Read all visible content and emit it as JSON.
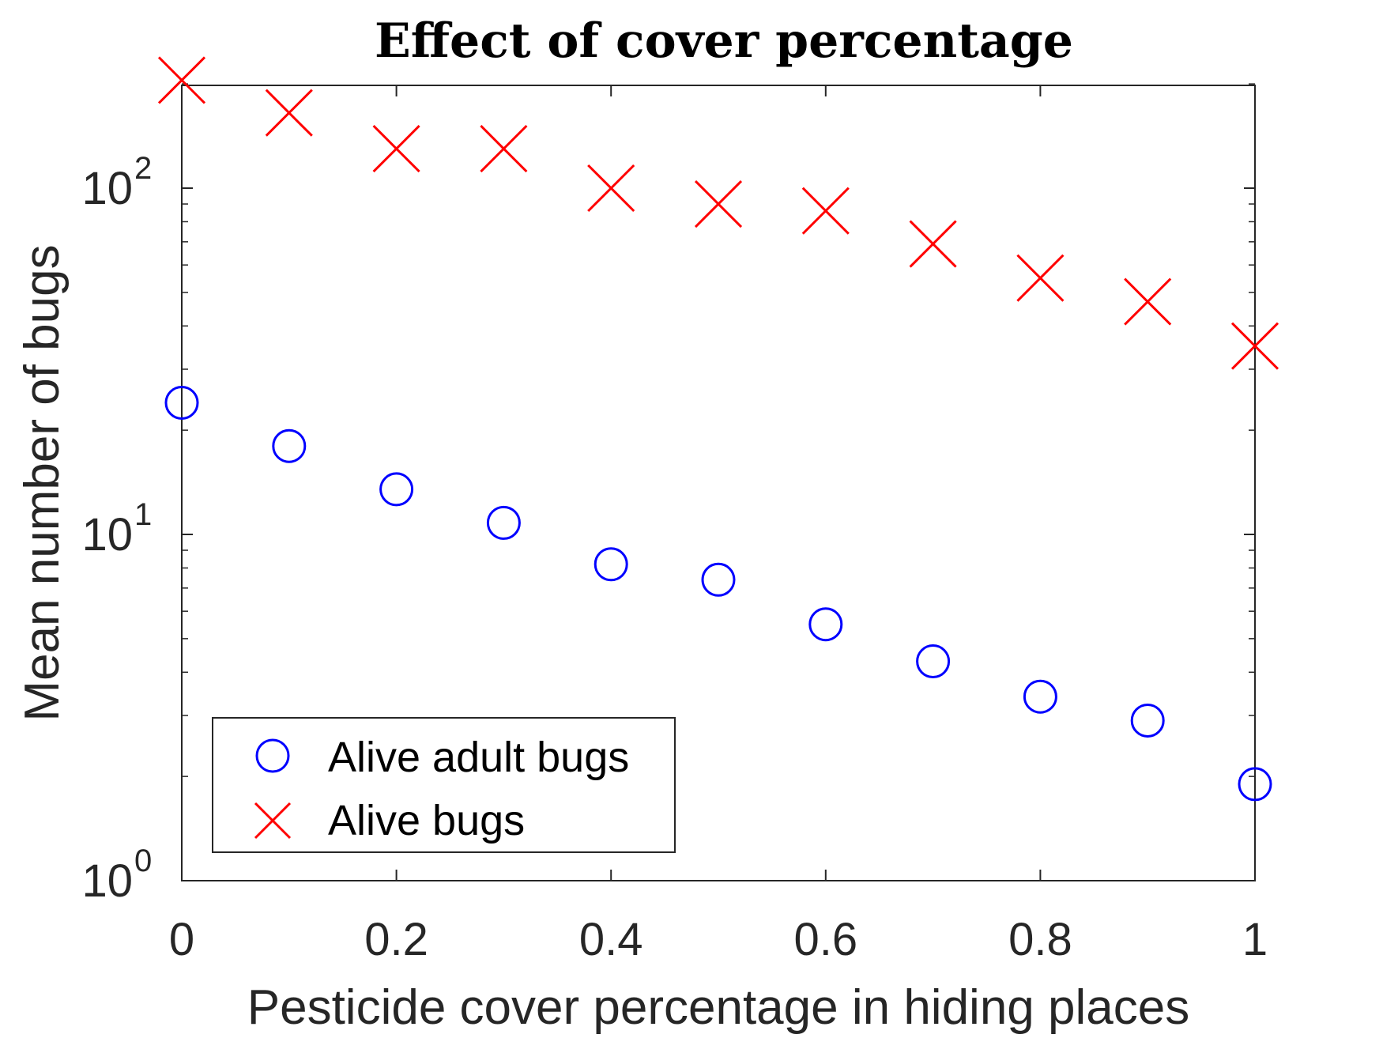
{
  "chart_data": {
    "type": "scatter",
    "title": "Effect of cover percentage",
    "xlabel": "Pesticide cover percentage in hiding places",
    "ylabel": "Mean number of bugs",
    "xlim": [
      0,
      1
    ],
    "ylim": [
      1,
      250
    ],
    "yscale": "log",
    "x_ticks": [
      0,
      0.2,
      0.4,
      0.6,
      0.8,
      1
    ],
    "x_tick_labels": [
      "0",
      "0.2",
      "0.4",
      "0.6",
      "0.8",
      "1"
    ],
    "y_ticks": [
      {
        "value": 1,
        "base": "10",
        "exp": "0"
      },
      {
        "value": 10,
        "base": "10",
        "exp": "1"
      },
      {
        "value": 100,
        "base": "10",
        "exp": "2"
      }
    ],
    "grid": false,
    "legend_position": "bottom-left",
    "series": [
      {
        "name": "Alive adult bugs",
        "marker": "circle",
        "color": "#0000ff",
        "x": [
          0,
          0.1,
          0.2,
          0.3,
          0.4,
          0.5,
          0.6,
          0.7,
          0.8,
          0.9,
          1.0
        ],
        "y": [
          24,
          18,
          13.5,
          10.8,
          8.2,
          7.4,
          5.5,
          4.3,
          3.4,
          2.9,
          1.9
        ]
      },
      {
        "name": "Alive bugs",
        "marker": "x",
        "color": "#ff0000",
        "x": [
          0,
          0.1,
          0.2,
          0.3,
          0.4,
          0.5,
          0.6,
          0.7,
          0.8,
          0.9,
          1.0
        ],
        "y": [
          205,
          165,
          130,
          130,
          100,
          90,
          86,
          69,
          55,
          47,
          35
        ]
      }
    ]
  }
}
